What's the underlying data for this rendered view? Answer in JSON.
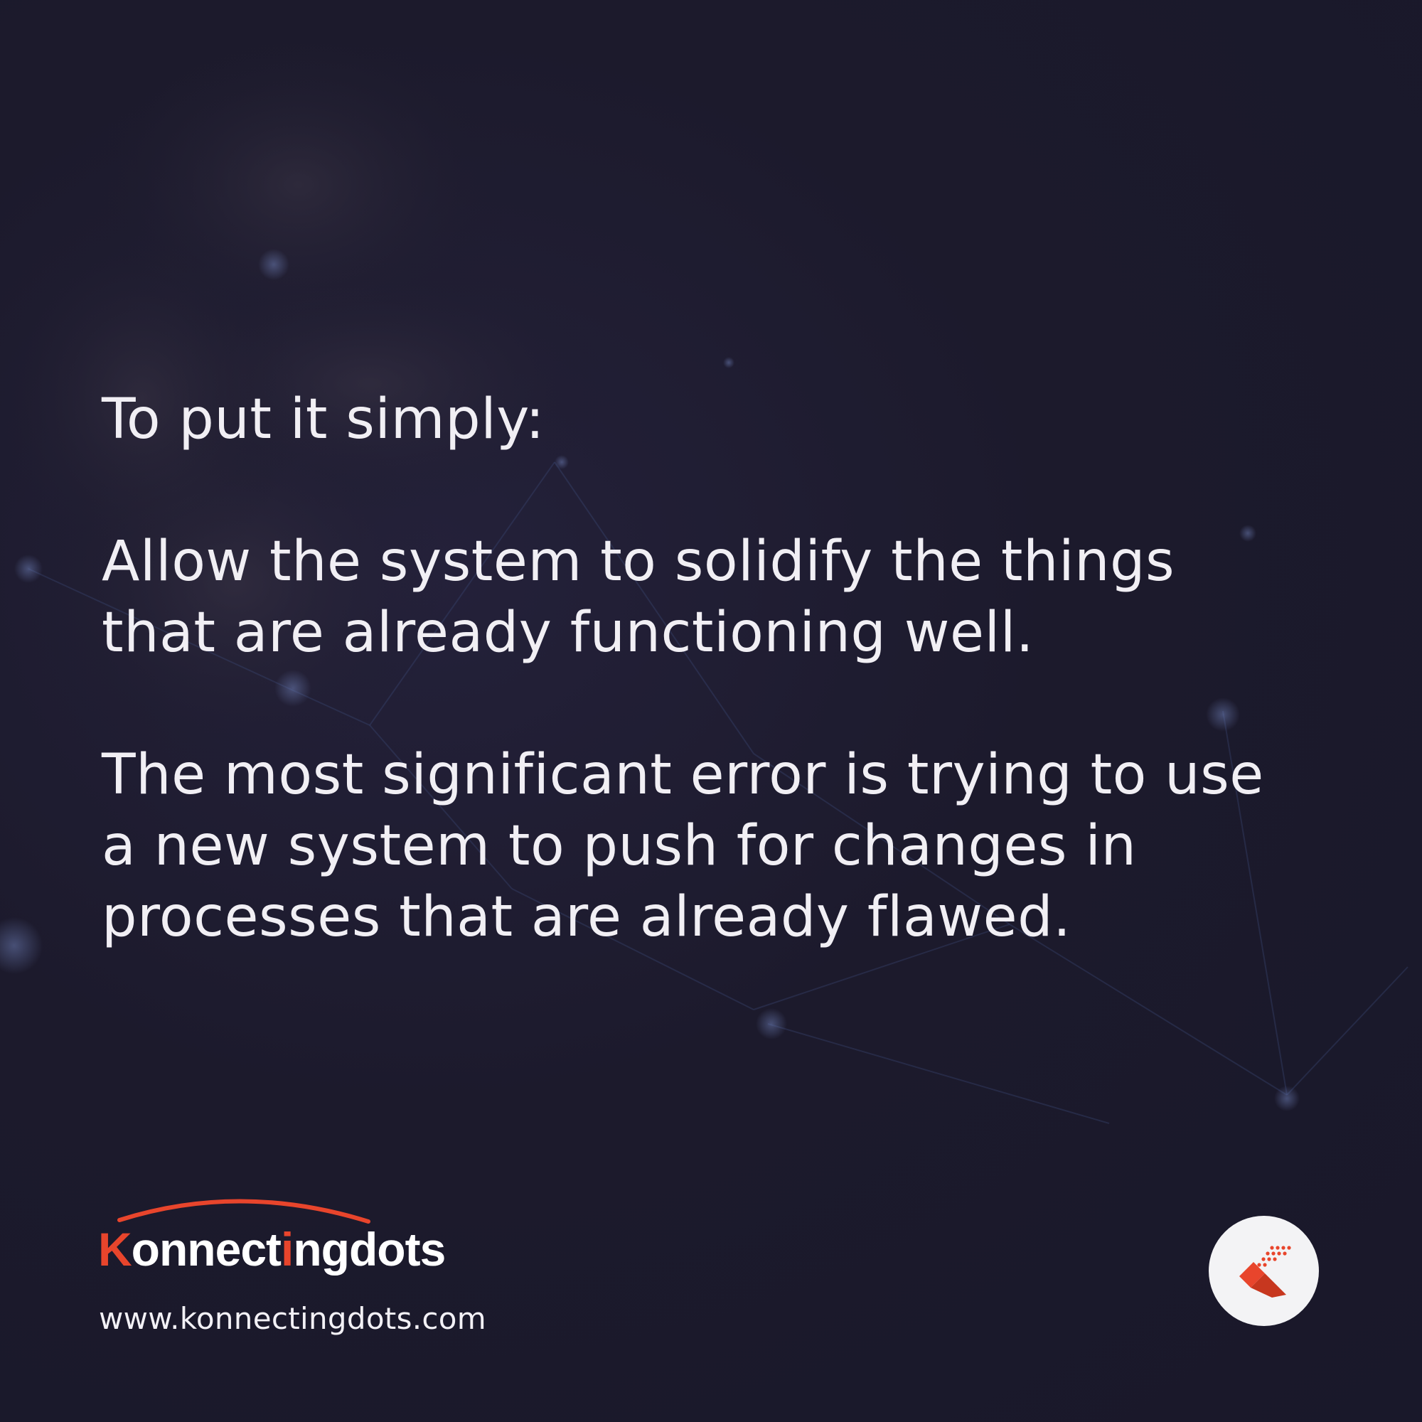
{
  "paragraphs": {
    "intro": "To put it simply:",
    "first": "Allow the system to solidify the things\nthat are already functioning well.",
    "second": "The most significant error is trying to use\na new system to push for changes in\nprocesses that are already flawed."
  },
  "brand": {
    "name": "Konnectingdots",
    "website": "www.konnectingdots.com",
    "accent_color": "#e8452c",
    "text_color": "#ffffff",
    "background_color": "#1c1a2b"
  },
  "icons": {
    "brand_logo": "konnectingdots-logo",
    "brand_badge": "k-mark-icon"
  }
}
